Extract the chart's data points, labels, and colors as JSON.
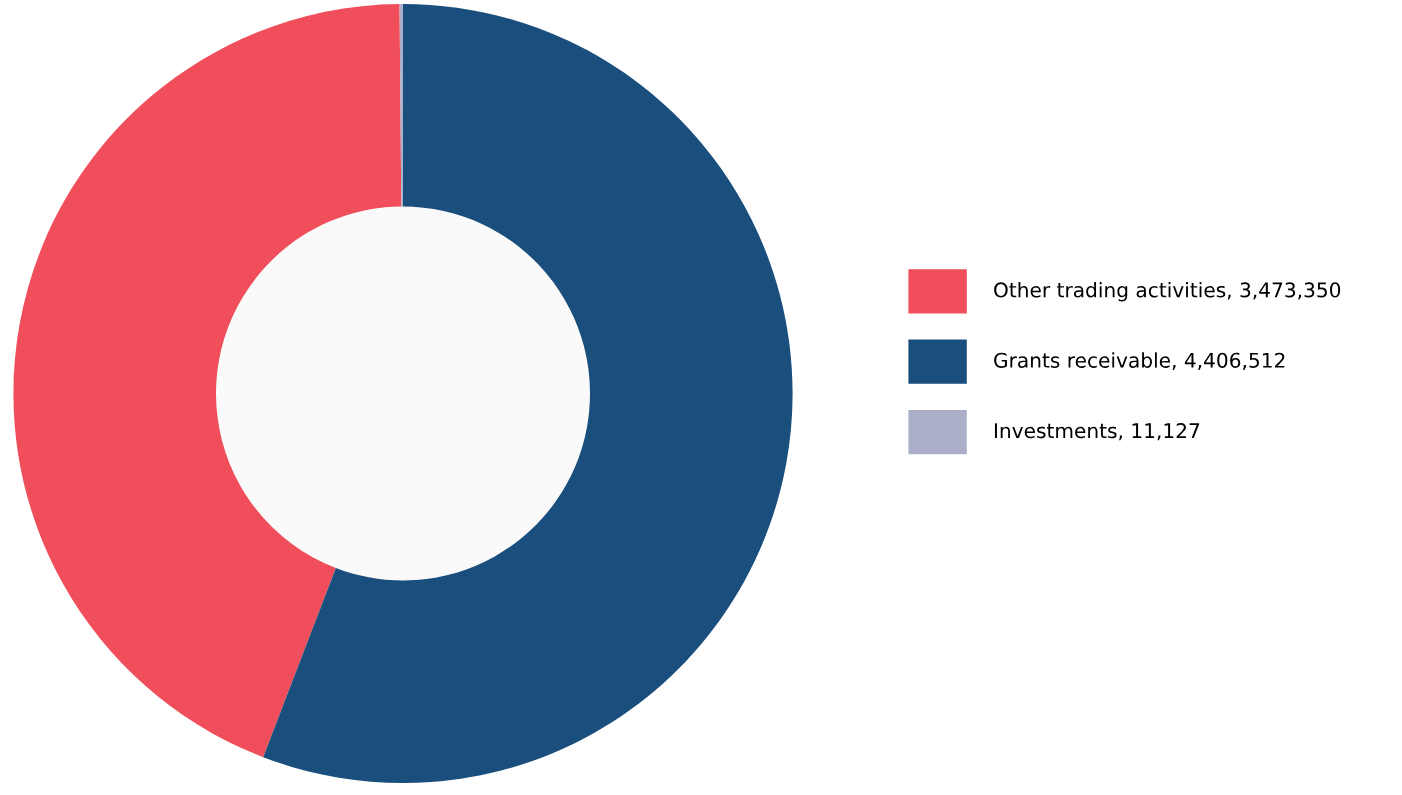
{
  "chart_data": {
    "type": "donut",
    "categories": [
      "Other trading activities, 3,473,350",
      "Grants receivable, 4,406,512",
      "Investments, 11,127"
    ],
    "values": [
      3473350,
      4406512,
      11127
    ],
    "colors": [
      "#ef4e5a",
      "#1a4e7c",
      "#abb0c8"
    ],
    "legend": "right"
  }
}
